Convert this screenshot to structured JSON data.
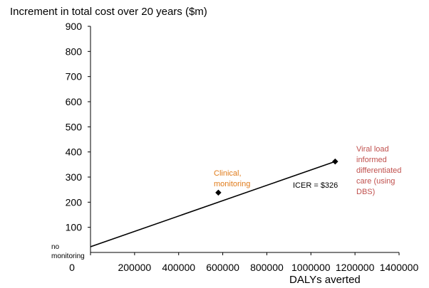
{
  "chart_data": {
    "type": "scatter",
    "title": "",
    "ylabel": "Increment in total cost over 20 years ($m)",
    "xlabel": "DALYs averted",
    "xlim": [
      0,
      1400000
    ],
    "ylim": [
      0,
      900
    ],
    "xticks": [
      "0",
      "200000",
      "400000",
      "600000",
      "800000",
      "1000000",
      "1200000",
      "1400000"
    ],
    "yticks": [
      "100",
      "200",
      "300",
      "400",
      "500",
      "600",
      "700",
      "800",
      "900"
    ],
    "points": [
      {
        "label": "no monitoring",
        "x": 0,
        "y": 0
      },
      {
        "label": "Clinical, monitoring",
        "x": 580000,
        "y": 238,
        "color": "#E07B1A"
      },
      {
        "label": "Viral load informed differentiated care (using DBS)",
        "x": 1110000,
        "y": 362,
        "color": "#C0504D"
      }
    ],
    "frontier": [
      [
        0,
        0
      ],
      [
        1110000,
        362
      ]
    ],
    "annotation": "ICER = $326",
    "grid": false
  }
}
